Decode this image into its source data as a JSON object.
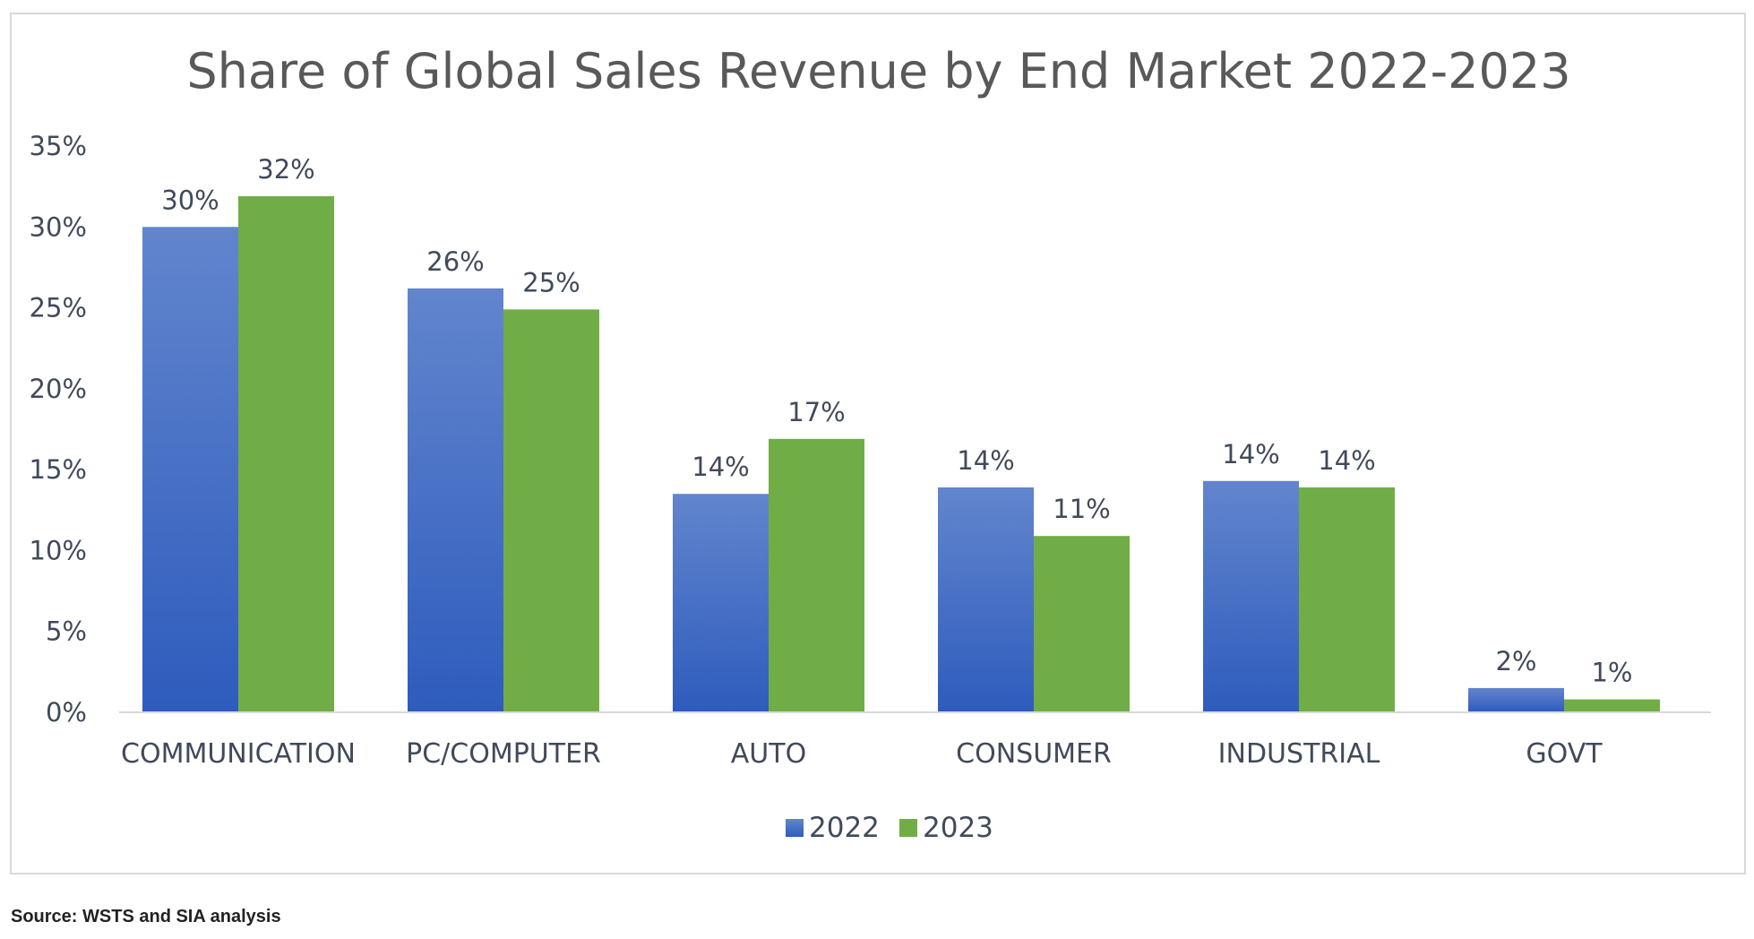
{
  "chart_data": {
    "type": "bar",
    "title": "Share of Global Sales Revenue by End Market 2022-2023",
    "xlabel": "",
    "ylabel": "",
    "categories": [
      "COMMUNICATION",
      "PC/COMPUTER",
      "AUTO",
      "CONSUMER",
      "INDUSTRIAL",
      "GOVT"
    ],
    "series": [
      {
        "name": "2022",
        "color": "#4472c4",
        "values": [
          30,
          26.2,
          13.5,
          13.9,
          14.3,
          1.5
        ],
        "data_labels": [
          "30%",
          "26%",
          "14%",
          "14%",
          "14%",
          "2%"
        ]
      },
      {
        "name": "2023",
        "color": "#70ad47",
        "values": [
          31.9,
          24.9,
          16.9,
          10.9,
          13.9,
          0.8
        ],
        "data_labels": [
          "32%",
          "25%",
          "17%",
          "11%",
          "14%",
          "1%"
        ]
      }
    ],
    "ylim": [
      0,
      35
    ],
    "yticks": [
      0,
      5,
      10,
      15,
      20,
      25,
      30,
      35
    ],
    "ytick_labels": [
      "0%",
      "5%",
      "10%",
      "15%",
      "20%",
      "25%",
      "30%",
      "35%"
    ],
    "grid": false,
    "legend_position": "bottom-center"
  },
  "source_note": "Source: WSTS and SIA analysis"
}
